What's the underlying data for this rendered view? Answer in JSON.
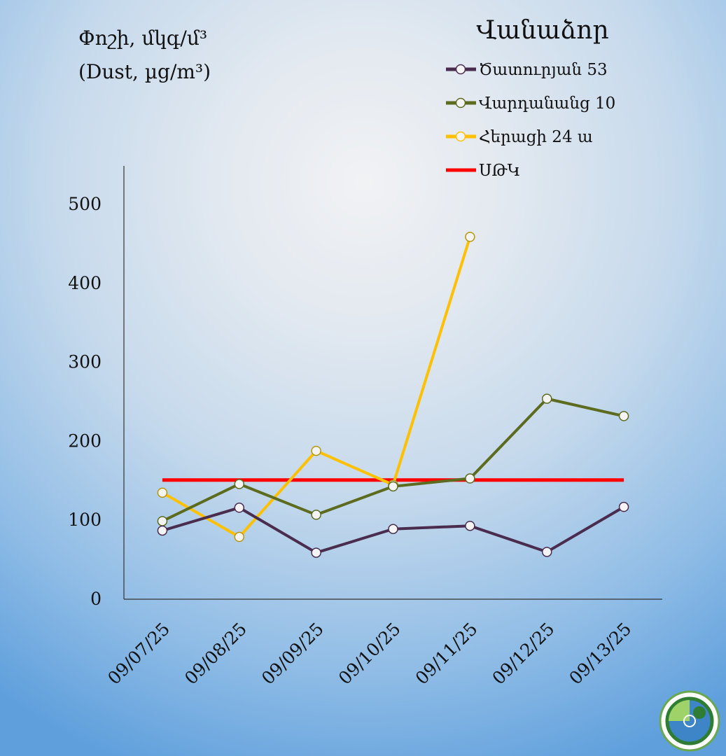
{
  "chart_data": {
    "type": "line",
    "title": "Վանաձոր",
    "ylabel_line1": "Փոշի, մկգ/մ³",
    "ylabel_line2": "(Dust, µg/m³)",
    "xlabel": "",
    "categories": [
      "09/07/25",
      "09/08/25",
      "09/09/25",
      "09/10/25",
      "09/11/25",
      "09/12/25",
      "09/13/25"
    ],
    "ylim": [
      0,
      550
    ],
    "yticks": [
      0,
      100,
      200,
      300,
      400,
      500
    ],
    "grid": false,
    "legend_placement": "top-right",
    "series": [
      {
        "name": "Ծատուրյան 53",
        "color": "#4a2c4e",
        "values": [
          86,
          115,
          58,
          88,
          92,
          59,
          116
        ]
      },
      {
        "name": "Վարդանանց 10",
        "color": "#5c6b1e",
        "values": [
          98,
          145,
          106,
          142,
          152,
          253,
          231
        ]
      },
      {
        "name": "Հերացի 24 ա",
        "color": "#ffc000",
        "values": [
          134,
          78,
          187,
          144,
          458,
          null,
          null
        ]
      },
      {
        "name": "ՍԹԿ",
        "color": "#ff0000",
        "values": [
          150,
          150,
          150,
          150,
          150,
          150,
          150
        ],
        "markers": false
      }
    ]
  }
}
